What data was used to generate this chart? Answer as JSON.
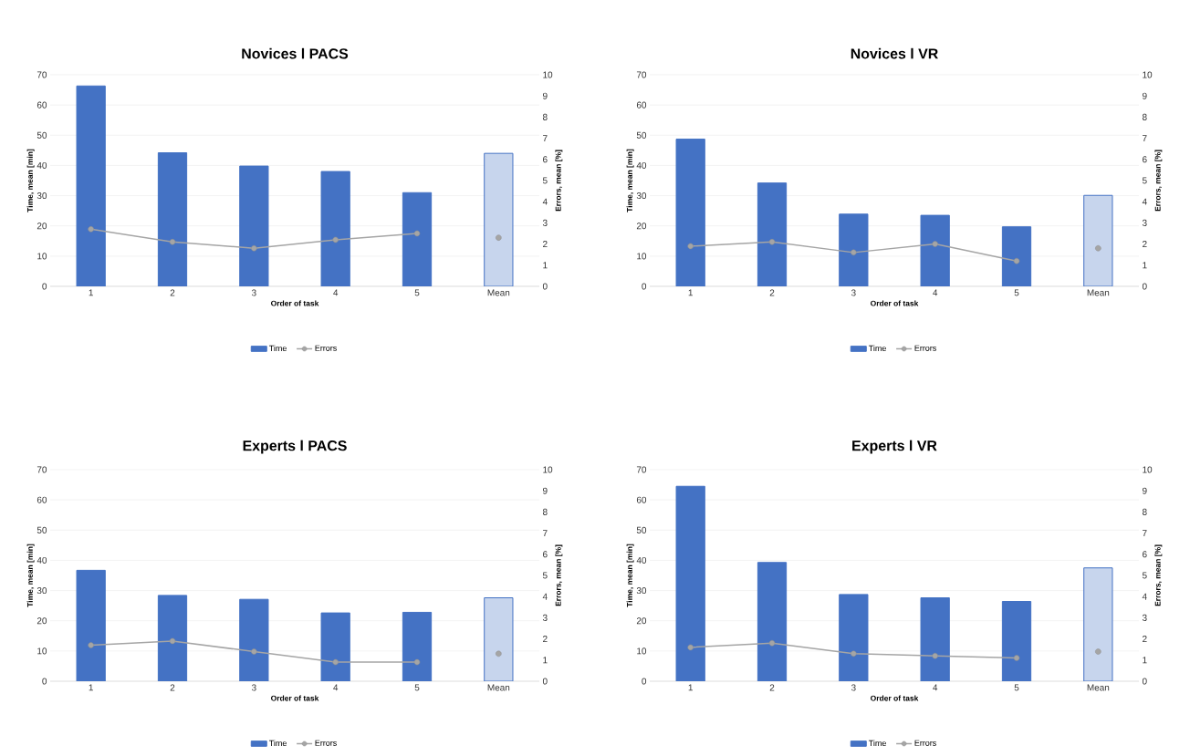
{
  "chart_data": [
    {
      "type": "bar",
      "title": "Novices l PACS",
      "xlabel": "Order of task",
      "ylabel": "Time, mean [min]",
      "y2label": "Errors, mean [%]",
      "categories": [
        "1",
        "2",
        "3",
        "4",
        "5",
        "Mean"
      ],
      "ylim": [
        0,
        70
      ],
      "yticks": [
        0,
        10,
        20,
        30,
        40,
        50,
        60,
        70
      ],
      "y2lim": [
        0,
        10
      ],
      "y2ticks": [
        0,
        1,
        2,
        3,
        4,
        5,
        6,
        7,
        8,
        9,
        10
      ],
      "grid": "y",
      "legend": "bottom",
      "series": [
        {
          "name": "Time",
          "color": "#4472c4",
          "values": [
            66.3,
            44.2,
            39.8,
            38.0,
            31.0,
            null
          ]
        },
        {
          "color": "#4472c4",
          "values": [
            null,
            null,
            null,
            null,
            null,
            44.0
          ]
        },
        {
          "name": "Errors",
          "type": "line",
          "axis": "y2",
          "marker": "circle",
          "color": "#a5a5a5",
          "values": [
            2.7,
            2.1,
            1.8,
            2.2,
            2.5,
            null
          ]
        },
        {
          "type": "scatter",
          "axis": "y2",
          "marker": "circle",
          "color": "#a5a5a5",
          "values": [
            null,
            null,
            null,
            null,
            null,
            2.3
          ]
        }
      ]
    },
    {
      "type": "bar",
      "title": "Novices l VR",
      "xlabel": "Order of task",
      "ylabel": "Time, mean [min]",
      "y2label": "Errors, mean [%]",
      "categories": [
        "1",
        "2",
        "3",
        "4",
        "5",
        "Mean"
      ],
      "ylim": [
        0,
        70
      ],
      "yticks": [
        0,
        10,
        20,
        30,
        40,
        50,
        60,
        70
      ],
      "y2lim": [
        0,
        10
      ],
      "y2ticks": [
        0,
        1,
        2,
        3,
        4,
        5,
        6,
        7,
        8,
        9,
        10
      ],
      "grid": "y",
      "legend": "bottom",
      "series": [
        {
          "name": "Time",
          "color": "#4472c4",
          "values": [
            48.7,
            34.2,
            23.9,
            23.5,
            19.7,
            null
          ]
        },
        {
          "color": "#4472c4",
          "values": [
            null,
            null,
            null,
            null,
            null,
            30.1
          ]
        },
        {
          "name": "Errors",
          "type": "line",
          "axis": "y2",
          "marker": "circle",
          "color": "#a5a5a5",
          "values": [
            1.9,
            2.1,
            1.6,
            2.0,
            1.2,
            null
          ]
        },
        {
          "type": "scatter",
          "axis": "y2",
          "marker": "circle",
          "color": "#a5a5a5",
          "values": [
            null,
            null,
            null,
            null,
            null,
            1.8
          ]
        }
      ]
    },
    {
      "type": "bar",
      "title": "Experts l PACS",
      "xlabel": "Order of task",
      "ylabel": "Time, mean [min]",
      "y2label": "Errors, mean [%]",
      "categories": [
        "1",
        "2",
        "3",
        "4",
        "5",
        "Mean"
      ],
      "ylim": [
        0,
        70
      ],
      "yticks": [
        0,
        10,
        20,
        30,
        40,
        50,
        60,
        70
      ],
      "y2lim": [
        0,
        10
      ],
      "y2ticks": [
        0,
        1,
        2,
        3,
        4,
        5,
        6,
        7,
        8,
        9,
        10
      ],
      "grid": "y",
      "legend": "bottom",
      "series": [
        {
          "name": "Time",
          "color": "#4472c4",
          "values": [
            36.7,
            28.4,
            27.1,
            22.6,
            22.8,
            null
          ]
        },
        {
          "color": "#4472c4",
          "values": [
            null,
            null,
            null,
            null,
            null,
            27.6
          ]
        },
        {
          "name": "Errors",
          "type": "line",
          "axis": "y2",
          "marker": "circle",
          "color": "#a5a5a5",
          "values": [
            1.7,
            1.9,
            1.4,
            0.9,
            0.9,
            null
          ]
        },
        {
          "type": "scatter",
          "axis": "y2",
          "marker": "circle",
          "color": "#a5a5a5",
          "values": [
            null,
            null,
            null,
            null,
            null,
            1.3
          ]
        }
      ]
    },
    {
      "type": "bar",
      "title": "Experts l VR",
      "xlabel": "Order of task",
      "ylabel": "Time, mean [min]",
      "y2label": "Errors, mean [%]",
      "categories": [
        "1",
        "2",
        "3",
        "4",
        "5",
        "Mean"
      ],
      "ylim": [
        0,
        70
      ],
      "yticks": [
        0,
        10,
        20,
        30,
        40,
        50,
        60,
        70
      ],
      "y2lim": [
        0,
        10
      ],
      "y2ticks": [
        0,
        1,
        2,
        3,
        4,
        5,
        6,
        7,
        8,
        9,
        10
      ],
      "grid": "y",
      "legend": "bottom",
      "series": [
        {
          "name": "Time",
          "color": "#4472c4",
          "values": [
            64.5,
            39.3,
            28.7,
            27.6,
            26.4,
            null
          ]
        },
        {
          "color": "#4472c4",
          "values": [
            null,
            null,
            null,
            null,
            null,
            37.5
          ]
        },
        {
          "name": "Errors",
          "type": "line",
          "axis": "y2",
          "marker": "circle",
          "color": "#a5a5a5",
          "values": [
            1.6,
            1.8,
            1.3,
            1.2,
            1.1,
            null
          ]
        },
        {
          "type": "scatter",
          "axis": "y2",
          "marker": "circle",
          "color": "#a5a5a5",
          "values": [
            null,
            null,
            null,
            null,
            null,
            1.4
          ]
        }
      ]
    }
  ]
}
